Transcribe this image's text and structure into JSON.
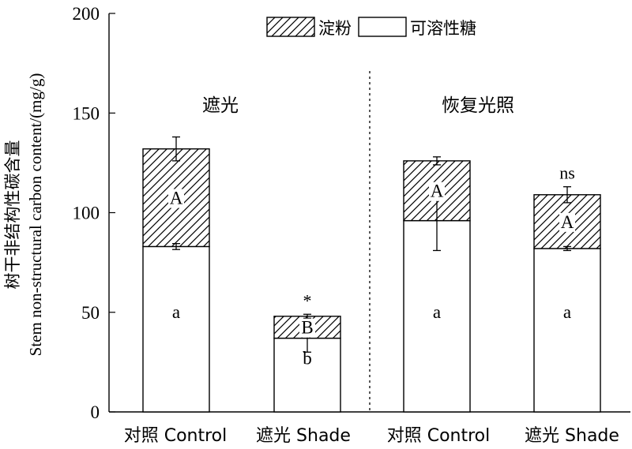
{
  "chart_data": {
    "type": "bar",
    "stacked": true,
    "ylabel_cn": "树干非结构性碳含量",
    "ylabel_en": "Stem non-structural carbon content/(mg/g)",
    "ylim": [
      0,
      200
    ],
    "yticks": [
      "0",
      "50",
      "100",
      "150",
      "200"
    ],
    "ytick_values": [
      0,
      50,
      100,
      150,
      200
    ],
    "legend": {
      "placement": "top-center",
      "items": [
        {
          "label": "淀粉",
          "pattern": "hatch"
        },
        {
          "label": "可溶性糖",
          "pattern": "white"
        }
      ]
    },
    "groups": [
      {
        "label": "遮光"
      },
      {
        "label": "恢复光照"
      }
    ],
    "categories": [
      "对照  Control",
      "遮光  Shade",
      "对照  Control",
      "遮光  Shade"
    ],
    "series": [
      {
        "name": "可溶性糖",
        "values": [
          83,
          37,
          96,
          82
        ],
        "errors": [
          1.5,
          7,
          15,
          1
        ],
        "labels": [
          "a",
          "b",
          "a",
          "a"
        ]
      },
      {
        "name": "淀粉",
        "values": [
          49,
          11,
          30,
          27
        ],
        "errors": [
          6,
          1,
          2,
          4
        ],
        "labels": [
          "A",
          "B",
          "A",
          "A"
        ]
      }
    ],
    "significance": [
      "",
      "*",
      "",
      "ns"
    ]
  }
}
